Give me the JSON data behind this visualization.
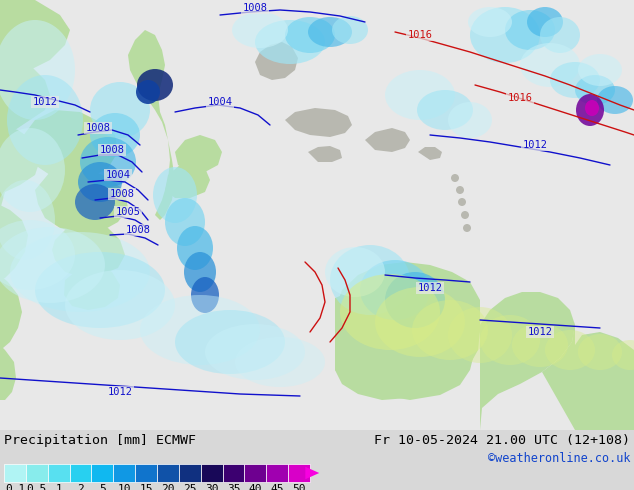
{
  "title_left": "Precipitation [mm] ECMWF",
  "title_right": "Fr 10-05-2024 21.00 UTC (12+108)",
  "credit": "©weatheronline.co.uk",
  "colorbar_labels": [
    "0.1",
    "0.5",
    "1",
    "2",
    "5",
    "10",
    "15",
    "20",
    "25",
    "30",
    "35",
    "40",
    "45",
    "50"
  ],
  "colorbar_colors": [
    "#b0f4f4",
    "#88ecec",
    "#58e0f0",
    "#28d0f0",
    "#10b8f0",
    "#1098e4",
    "#1074cc",
    "#1052a8",
    "#103080",
    "#180858",
    "#3c0070",
    "#6e0090",
    "#a000b0",
    "#d800c8",
    "#f800e0"
  ],
  "bg_color": "#d8d8d8",
  "ocean_bg": "#e8e8e8",
  "land_green": "#b8dca0",
  "land_gray": "#b8b8b0",
  "precip_light1": "#c8f0f8",
  "precip_light2": "#a0e4f4",
  "precip_light3": "#78d4f0",
  "precip_med1": "#48b8e8",
  "precip_med2": "#2890d8",
  "precip_dark1": "#1860c0",
  "precip_dark2": "#1040a0",
  "precip_dark3": "#102878",
  "precip_purple": "#700098",
  "precip_magenta": "#c800b8",
  "isobar_blue": "#1010cc",
  "isobar_red": "#cc1010",
  "font_label": 9.5,
  "font_title": 9.5,
  "font_credit": 8.5,
  "font_tick": 8.0,
  "font_isobar": 7.5
}
